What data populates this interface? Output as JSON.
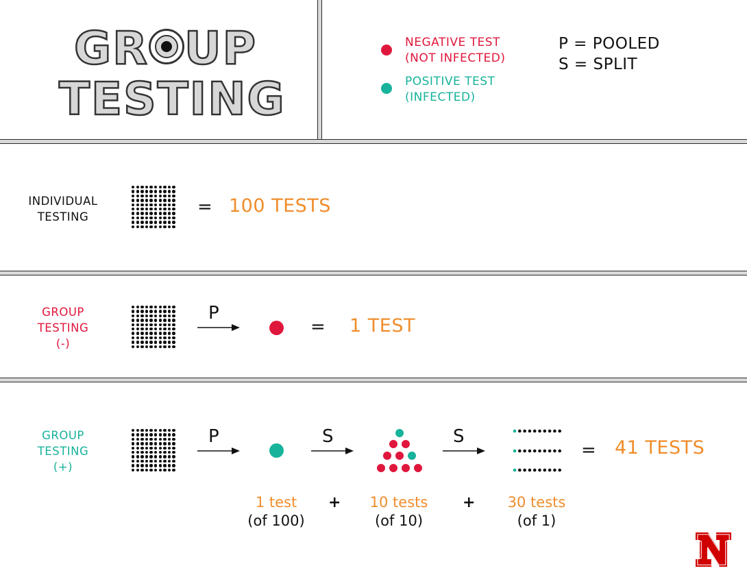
{
  "header": {
    "title_line1_a": "GR",
    "title_line1_b": "UP",
    "title_line2": "TESTING"
  },
  "legend": {
    "negative_line1": "NEGATIVE TEST",
    "negative_line2": "(NOT INFECTED)",
    "positive_line1": "POSITIVE TEST",
    "positive_line2": "(INFECTED)",
    "pooled": "P = POOLED",
    "split": "S = SPLIT"
  },
  "colors": {
    "negative": "#e0173c",
    "positive": "#17b39a",
    "result": "#f08d2c"
  },
  "individual": {
    "label_line1": "INDIVIDUAL",
    "label_line2": "TESTING",
    "equals": "=",
    "result": "100 TESTS"
  },
  "group_negative": {
    "label_line1": "GROUP",
    "label_line2": "TESTING",
    "label_line3": "(-)",
    "arrow_label": "P",
    "equals": "=",
    "result": "1 TEST"
  },
  "group_positive": {
    "label_line1": "GROUP",
    "label_line2": "TESTING",
    "label_line3": "(+)",
    "arrow1_label": "P",
    "arrow2_label": "S",
    "arrow3_label": "S",
    "equals": "=",
    "result": "41 TESTS",
    "step1_count": "1 test",
    "step1_of": "(of 100)",
    "plus1": "+",
    "step2_count": "10 tests",
    "step2_of": "(of 10)",
    "plus2": "+",
    "step3_count": "30 tests",
    "step3_of": "(of 1)"
  },
  "logo": {
    "letter": "N"
  }
}
